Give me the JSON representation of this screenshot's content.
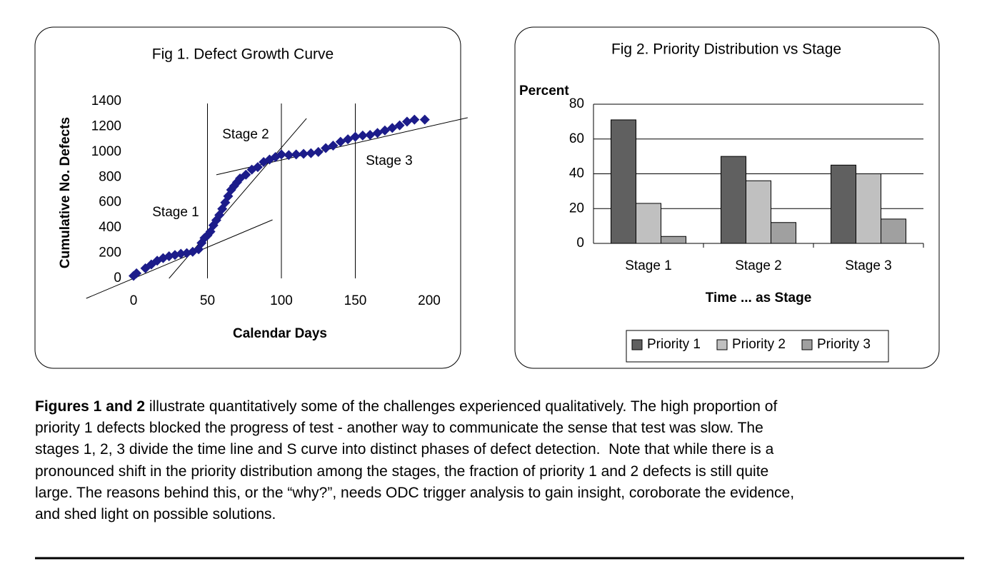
{
  "chart_data": [
    {
      "type": "scatter",
      "title": "Fig 1.  Defect Growth Curve",
      "xlabel": "Calendar Days",
      "ylabel": "Cumulative No. Defects",
      "x": [
        0,
        2,
        8,
        12,
        16,
        20,
        24,
        28,
        32,
        36,
        40,
        44,
        46,
        48,
        50,
        52,
        54,
        56,
        58,
        60,
        62,
        64,
        66,
        68,
        70,
        72,
        76,
        80,
        84,
        88,
        92,
        96,
        100,
        105,
        110,
        115,
        120,
        125,
        130,
        135,
        140,
        145,
        150,
        155,
        160,
        165,
        170,
        175,
        180,
        185,
        190,
        197
      ],
      "values": [
        20,
        40,
        80,
        110,
        140,
        160,
        175,
        185,
        195,
        200,
        210,
        230,
        280,
        320,
        340,
        370,
        420,
        460,
        500,
        550,
        600,
        650,
        700,
        730,
        760,
        790,
        820,
        860,
        880,
        920,
        940,
        960,
        980,
        975,
        980,
        985,
        990,
        1000,
        1030,
        1050,
        1080,
        1100,
        1120,
        1130,
        1135,
        1150,
        1170,
        1190,
        1210,
        1240,
        1255,
        1255
      ],
      "color": "#1c1c8a",
      "xlim": [
        0,
        200
      ],
      "xticks": [
        0,
        50,
        100,
        150,
        200
      ],
      "ylim": [
        0,
        1400
      ],
      "yticks": [
        0,
        200,
        400,
        600,
        800,
        1000,
        1200,
        1400
      ],
      "stage_boundaries": [
        50,
        100,
        150
      ],
      "trend_lines": [
        {
          "x": [
            -32,
            94
          ],
          "y": [
            -158,
            463
          ]
        },
        {
          "x": [
            24,
            117
          ],
          "y": [
            0,
            1265
          ]
        },
        {
          "x": [
            56,
            226
          ],
          "y": [
            819,
            1271
          ]
        }
      ],
      "annotations": [
        "Stage 1",
        "Stage 2",
        "Stage 3"
      ]
    },
    {
      "type": "bar",
      "title": "Fig 2.  Priority Distribution vs Stage",
      "xlabel": "Time ... as Stage",
      "ylabel": "Percent",
      "categories": [
        "Stage 1",
        "Stage 2",
        "Stage 3"
      ],
      "series": [
        {
          "name": "Priority 1",
          "color": "#606060",
          "values": [
            71,
            50,
            45
          ]
        },
        {
          "name": "Priority 2",
          "color": "#c0c0c0",
          "values": [
            23,
            36,
            40
          ]
        },
        {
          "name": "Priority 3",
          "color": "#a0a0a0",
          "values": [
            4,
            12,
            14
          ]
        }
      ],
      "ylim": [
        0,
        80
      ],
      "yticks": [
        0,
        20,
        40,
        60,
        80
      ],
      "grid": true,
      "legend": "bottom"
    }
  ],
  "paragraph": {
    "lead": "Figures 1 and 2",
    "lines": [
      " illustrate quantitatively some of the challenges experienced qualitatively. The high proportion of",
      "priority 1 defects blocked the progress of test - another way to communicate the sense that test was slow. The",
      "stages 1, 2, 3 divide the time line and S curve into distinct phases of defect detection.  Note that while there is a",
      "pronounced shift in the priority distribution among the stages, the fraction of priority 1 and 2 defects is still quite",
      "large. The reasons behind this, or the “why?”, needs ODC trigger analysis to gain insight, coroborate the evidence,",
      "and shed light on possible solutions."
    ]
  }
}
